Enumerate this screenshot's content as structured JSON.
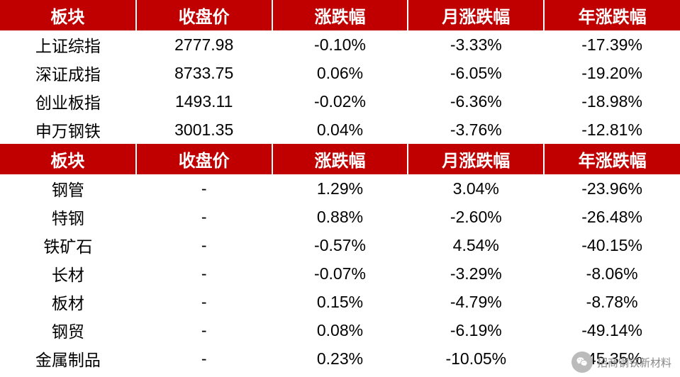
{
  "styling": {
    "header_bg": "#c00000",
    "header_fg": "#ffffff",
    "positive_color": "#c00000",
    "negative_color": "#008060",
    "neutral_color": "#000000",
    "font_family": "Microsoft YaHei",
    "header_fontsize": 24,
    "cell_fontsize": 23,
    "col_widths_pct": [
      20,
      20,
      20,
      20,
      20
    ]
  },
  "table1": {
    "headers": [
      "板块",
      "收盘价",
      "涨跌幅",
      "月涨跌幅",
      "年涨跌幅"
    ],
    "rows": [
      {
        "name": "上证综指",
        "close": "2777.98",
        "chg": "-0.10%",
        "mchg": "-3.33%",
        "ychg": "-17.39%",
        "chg_sign": -1,
        "mchg_sign": -1,
        "ychg_sign": -1
      },
      {
        "name": "深证成指",
        "close": "8733.75",
        "chg": "0.06%",
        "mchg": "-6.05%",
        "ychg": "-19.20%",
        "chg_sign": 1,
        "mchg_sign": -1,
        "ychg_sign": -1
      },
      {
        "name": "创业板指",
        "close": "1493.11",
        "chg": "-0.02%",
        "mchg": "-6.36%",
        "ychg": "-18.98%",
        "chg_sign": -1,
        "mchg_sign": -1,
        "ychg_sign": -1
      },
      {
        "name": "申万钢铁",
        "close": "3001.35",
        "chg": "0.04%",
        "mchg": "-3.76%",
        "ychg": "-12.81%",
        "chg_sign": 1,
        "mchg_sign": -1,
        "ychg_sign": -1
      }
    ]
  },
  "table2": {
    "headers": [
      "板块",
      "收盘价",
      "涨跌幅",
      "月涨跌幅",
      "年涨跌幅"
    ],
    "rows": [
      {
        "name": "钢管",
        "close": "-",
        "chg": "1.29%",
        "mchg": "3.04%",
        "ychg": "-23.96%",
        "chg_sign": 1,
        "mchg_sign": 1,
        "ychg_sign": -1
      },
      {
        "name": "特钢",
        "close": "-",
        "chg": "0.88%",
        "mchg": "-2.60%",
        "ychg": "-26.48%",
        "chg_sign": 1,
        "mchg_sign": -1,
        "ychg_sign": -1
      },
      {
        "name": "铁矿石",
        "close": "-",
        "chg": "-0.57%",
        "mchg": "4.54%",
        "ychg": "-40.15%",
        "chg_sign": -1,
        "mchg_sign": 1,
        "ychg_sign": -1
      },
      {
        "name": "长材",
        "close": "-",
        "chg": "-0.07%",
        "mchg": "-3.29%",
        "ychg": "-8.06%",
        "chg_sign": -1,
        "mchg_sign": -1,
        "ychg_sign": -1
      },
      {
        "name": "板材",
        "close": "-",
        "chg": "0.15%",
        "mchg": "-4.79%",
        "ychg": "-8.78%",
        "chg_sign": 1,
        "mchg_sign": -1,
        "ychg_sign": -1
      },
      {
        "name": "钢贸",
        "close": "-",
        "chg": "0.08%",
        "mchg": "-6.19%",
        "ychg": "-49.14%",
        "chg_sign": 1,
        "mchg_sign": -1,
        "ychg_sign": -1
      },
      {
        "name": "金属制品",
        "close": "-",
        "chg": "0.23%",
        "mchg": "-10.05%",
        "ychg": "-45.35%",
        "chg_sign": 1,
        "mchg_sign": -1,
        "ychg_sign": -1
      }
    ]
  },
  "watermark": {
    "text": "招商钢铁新材料",
    "icon": "wechat-icon"
  }
}
